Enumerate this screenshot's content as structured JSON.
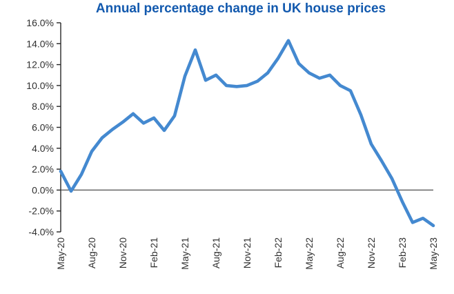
{
  "chart_data": {
    "type": "line",
    "title": "Annual percentage change in UK house prices",
    "x": [
      "May-20",
      "Jun-20",
      "Jul-20",
      "Aug-20",
      "Sep-20",
      "Oct-20",
      "Nov-20",
      "Dec-20",
      "Jan-21",
      "Feb-21",
      "Mar-21",
      "Apr-21",
      "May-21",
      "Jun-21",
      "Jul-21",
      "Aug-21",
      "Sep-21",
      "Oct-21",
      "Nov-21",
      "Dec-21",
      "Jan-22",
      "Feb-22",
      "Mar-22",
      "Apr-22",
      "May-22",
      "Jun-22",
      "Jul-22",
      "Aug-22",
      "Sep-22",
      "Oct-22",
      "Nov-22",
      "Dec-22",
      "Jan-23",
      "Feb-23",
      "Mar-23",
      "Apr-23",
      "May-23"
    ],
    "values": [
      1.8,
      -0.1,
      1.5,
      3.7,
      5.0,
      5.8,
      6.5,
      7.3,
      6.4,
      6.9,
      5.7,
      7.1,
      10.9,
      13.4,
      10.5,
      11.0,
      10.0,
      9.9,
      10.0,
      10.4,
      11.2,
      12.6,
      14.3,
      12.1,
      11.2,
      10.7,
      11.0,
      10.0,
      9.5,
      7.2,
      4.4,
      2.8,
      1.1,
      -1.1,
      -3.1,
      -2.7,
      -3.4
    ],
    "x_tick_labels": [
      "May-20",
      "Aug-20",
      "Nov-20",
      "Feb-21",
      "May-21",
      "Aug-21",
      "Nov-21",
      "Feb-22",
      "May-22",
      "Aug-22",
      "Nov-22",
      "Feb-23",
      "May-23"
    ],
    "x_tick_every": 3,
    "y_ticks": [
      "16.0%",
      "14.0%",
      "12.0%",
      "10.0%",
      "8.0%",
      "6.0%",
      "4.0%",
      "2.0%",
      "0.0%",
      "-2.0%",
      "-4.0%"
    ],
    "ylim": [
      -4,
      16
    ],
    "y_step": 2,
    "grid": false,
    "legend": "none",
    "zero_baseline": true,
    "colors": {
      "line": "#4489D0",
      "title": "#1259AE",
      "axis": "#262626",
      "zero_line": "#4d4d4d",
      "tick_text": "#303030",
      "background": "#ffffff"
    }
  }
}
